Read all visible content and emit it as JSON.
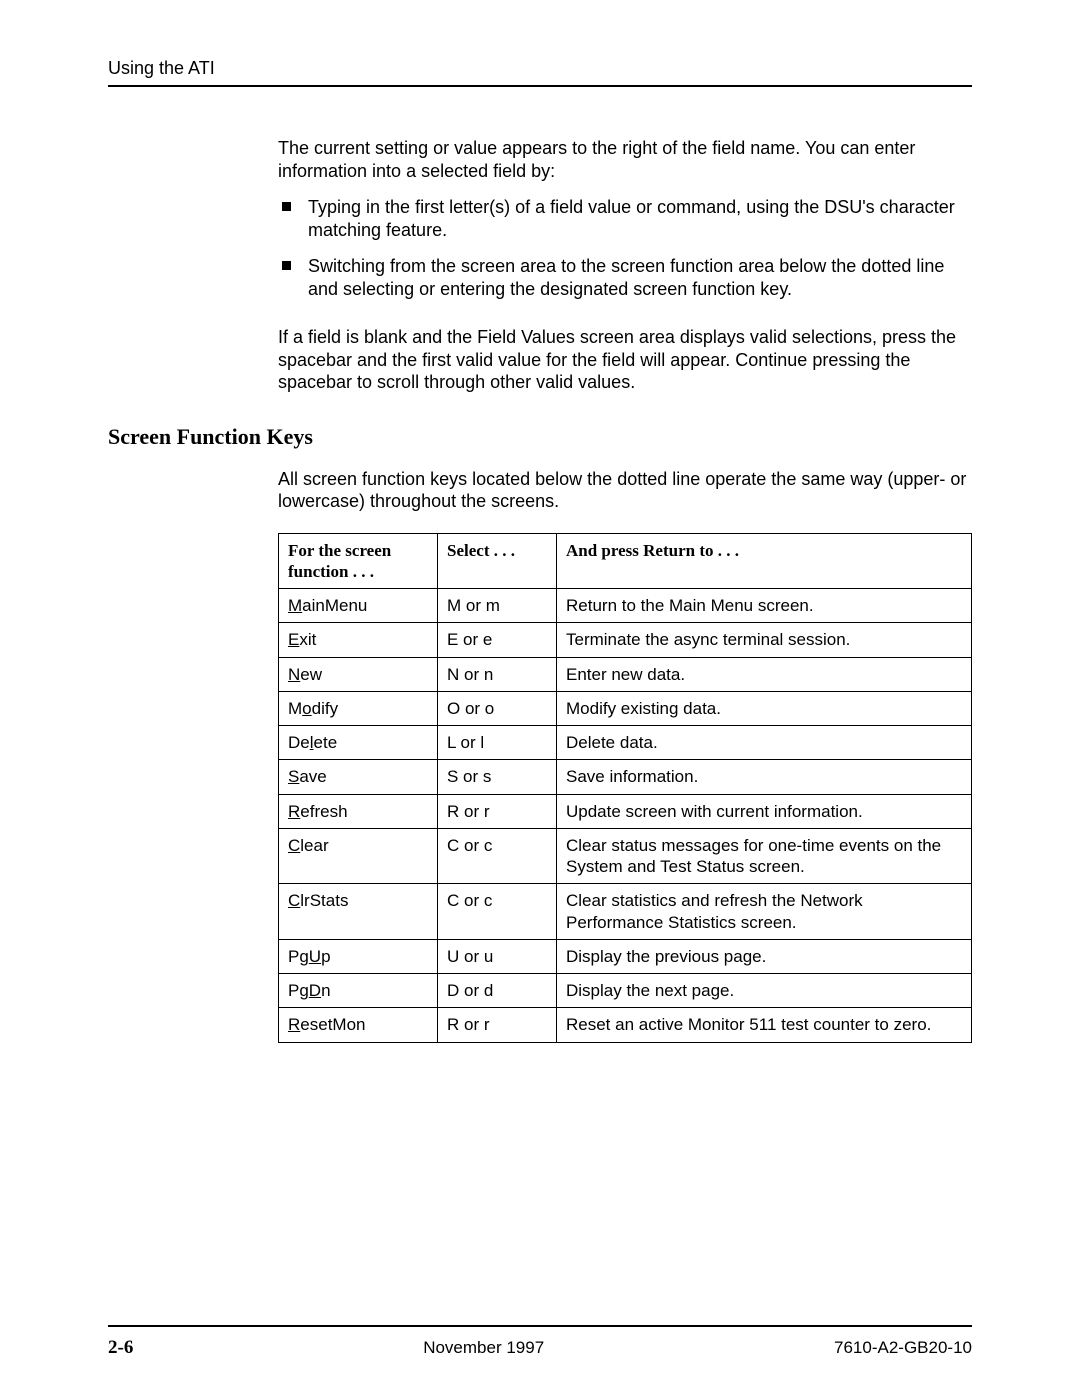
{
  "header": {
    "running_title": "Using the ATI"
  },
  "body": {
    "intro_para": "The current setting or value appears to the right of the field name. You can enter information into a selected field by:",
    "bullets": [
      "Typing in the first letter(s) of a field value or command, using the DSU's character matching feature.",
      "Switching from the screen area to the screen function area below the dotted line and selecting or entering the designated screen function key."
    ],
    "blank_para": "If a field is blank and the Field Values screen area displays valid selections, press the spacebar and the first valid value for the field will appear. Continue pressing the spacebar to scroll through other valid values.",
    "section_heading": "Screen Function Keys",
    "section_intro": "All screen function keys located below the dotted line operate the same way (upper- or lowercase) throughout the screens."
  },
  "table": {
    "headers": {
      "col1_line1": "For the screen",
      "col1_line2": "function . . .",
      "col2": "Select . . .",
      "col3": "And press Return to . . ."
    },
    "rows": [
      {
        "func_pre": "",
        "func_u": "M",
        "func_post": "ainMenu",
        "select": "M or m",
        "desc": "Return to the Main Menu screen."
      },
      {
        "func_pre": "",
        "func_u": "E",
        "func_post": "xit",
        "select": "E or e",
        "desc": "Terminate the async terminal session."
      },
      {
        "func_pre": "",
        "func_u": "N",
        "func_post": "ew",
        "select": "N or n",
        "desc": "Enter new data."
      },
      {
        "func_pre": "M",
        "func_u": "o",
        "func_post": "dify",
        "select": "O or o",
        "desc": "Modify existing data."
      },
      {
        "func_pre": "De",
        "func_u": "l",
        "func_post": "ete",
        "select": "L or l",
        "desc": "Delete data."
      },
      {
        "func_pre": "",
        "func_u": "S",
        "func_post": "ave",
        "select": "S or s",
        "desc": "Save information."
      },
      {
        "func_pre": "",
        "func_u": "R",
        "func_post": "efresh",
        "select": "R or r",
        "desc": "Update screen with current information."
      },
      {
        "func_pre": "",
        "func_u": "C",
        "func_post": "lear",
        "select": "C or c",
        "desc": "Clear status messages for one-time events on the System and Test Status screen."
      },
      {
        "func_pre": "",
        "func_u": "C",
        "func_post": "lrStats",
        "select": "C or c",
        "desc": "Clear statistics and refresh the Network Performance Statistics screen."
      },
      {
        "func_pre": "Pg",
        "func_u": "U",
        "func_post": "p",
        "select": "U or u",
        "desc": "Display the previous page."
      },
      {
        "func_pre": "Pg",
        "func_u": "D",
        "func_post": "n",
        "select": "D or d",
        "desc": "Display the next page."
      },
      {
        "func_pre": "",
        "func_u": "R",
        "func_post": "esetMon",
        "select": "R or r",
        "desc": "Reset an active Monitor 511 test counter to zero."
      }
    ]
  },
  "footer": {
    "page_number": "2-6",
    "date": "November 1997",
    "doc_id": "7610-A2-GB20-10"
  }
}
